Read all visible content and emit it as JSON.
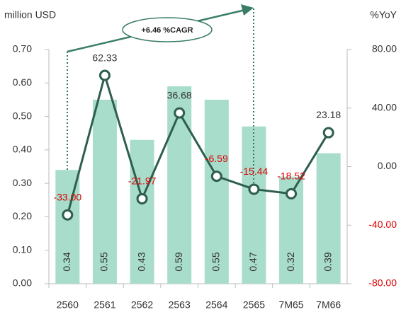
{
  "chart_data": {
    "type": "bar_line",
    "y_axis_label": "million USD",
    "y2_axis_label": "%YoY",
    "annotation": "+6.46 %CAGR",
    "categories": [
      "2560",
      "2561",
      "2562",
      "2563",
      "2564",
      "2565",
      "7M65",
      "7M66"
    ],
    "series": [
      {
        "name": "million USD",
        "type": "bar",
        "color": "#a8dccb",
        "values": [
          0.34,
          0.55,
          0.43,
          0.59,
          0.55,
          0.47,
          0.32,
          0.39
        ]
      },
      {
        "name": "%YoY",
        "type": "line",
        "axis": "y2",
        "color": "#2e5e4e",
        "values": [
          -33,
          62.33,
          -21.97,
          36.68,
          -6.59,
          -15.44,
          -18.52,
          23.18
        ],
        "value_labels": [
          "-33.00",
          "62.33",
          "-21.97",
          "36.68",
          "-6.59",
          "-15.44",
          "-18.52",
          "23.18"
        ]
      }
    ],
    "ylim": [
      0,
      0.7
    ],
    "yticks": [
      {
        "value": 0,
        "label": "0.00"
      },
      {
        "value": 0.1,
        "label": "0.10"
      },
      {
        "value": 0.2,
        "label": "0.20"
      },
      {
        "value": 0.3,
        "label": "0.30"
      },
      {
        "value": 0.4,
        "label": "0.40"
      },
      {
        "value": 0.5,
        "label": "0.50"
      },
      {
        "value": 0.6,
        "label": "0.60"
      },
      {
        "value": 0.7,
        "label": "0.70"
      }
    ],
    "y2lim": [
      -80,
      80
    ],
    "y2ticks": [
      {
        "value": -80,
        "label": "-80.00"
      },
      {
        "value": -40,
        "label": "-40.00"
      },
      {
        "value": 0,
        "label": "0.00"
      },
      {
        "value": 40,
        "label": "40.00"
      },
      {
        "value": 80,
        "label": "80.00"
      }
    ],
    "negative_color": "#e00000",
    "text_color": "#333333"
  }
}
